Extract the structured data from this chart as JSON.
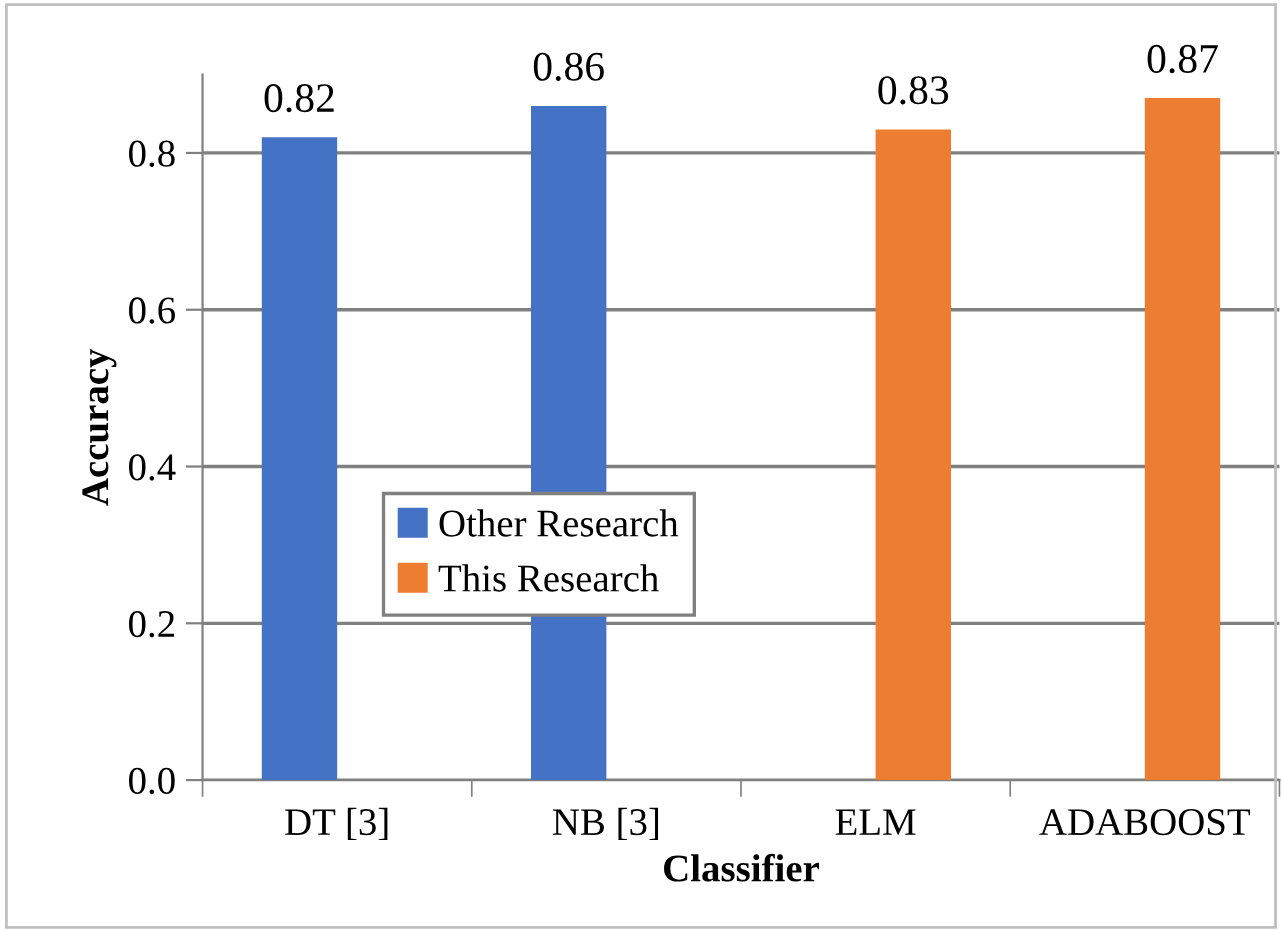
{
  "chart_data": {
    "type": "bar",
    "xlabel": "Classifier",
    "ylabel": "Accuracy",
    "categories": [
      "DT [3]",
      "NB [3]",
      "ELM",
      "ADABOOST"
    ],
    "series": [
      {
        "name": "Other Research",
        "color": "#4472c4",
        "values": [
          0.82,
          0.86,
          null,
          null
        ]
      },
      {
        "name": "This Research",
        "color": "#ed7d31",
        "values": [
          null,
          null,
          0.83,
          0.87
        ]
      }
    ],
    "ylim": [
      0,
      0.9
    ],
    "yticks": [
      {
        "value": 0,
        "label": "0.0"
      },
      0.2,
      0.4,
      0.6,
      0.8
    ],
    "grid": "y",
    "legend": "left",
    "data_labels": true
  }
}
